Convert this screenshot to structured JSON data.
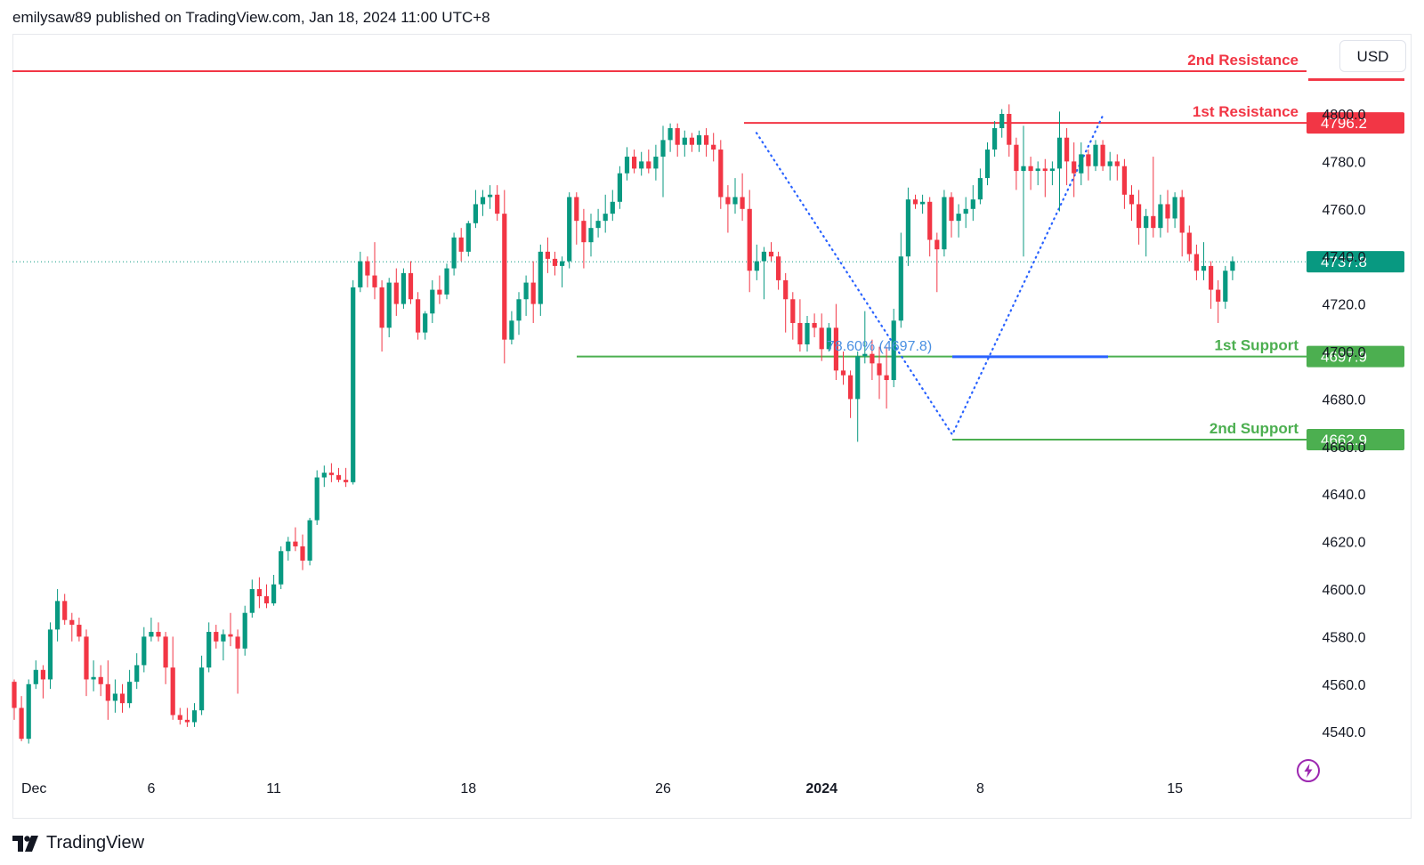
{
  "header": {
    "text": "emilysaw89 published on TradingView.com, Jan 18, 2024 11:00 UTC+8"
  },
  "currency": "USD",
  "footer": {
    "brand": "TradingView",
    "logo_icon": "tradingview-logo-icon"
  },
  "colors": {
    "up": "#089981",
    "down": "#f23645",
    "support": "#4caf50",
    "resistance": "#f23645",
    "fib": "#2962ff",
    "fib_text": "#4a90e2",
    "current": "#089981"
  },
  "chart_data": {
    "type": "candlestick",
    "y_ticks": [
      "4540.0",
      "4560.0",
      "4580.0",
      "4600.0",
      "4620.0",
      "4640.0",
      "4660.0",
      "4680.0",
      "4700.0",
      "4720.0",
      "4740.0",
      "4760.0",
      "4780.0",
      "4800.0"
    ],
    "x_ticks": [
      {
        "label": "Dec",
        "bold": false
      },
      {
        "label": "6",
        "bold": false
      },
      {
        "label": "11",
        "bold": false
      },
      {
        "label": "18",
        "bold": false
      },
      {
        "label": "26",
        "bold": false
      },
      {
        "label": "2024",
        "bold": true
      },
      {
        "label": "8",
        "bold": false
      },
      {
        "label": "15",
        "bold": false
      }
    ],
    "levels": [
      {
        "name": "2nd Resistance",
        "value": 4818,
        "type": "resistance",
        "badge": ""
      },
      {
        "name": "1st Resistance",
        "value": 4796.2,
        "type": "resistance",
        "badge": "4796.2"
      },
      {
        "name": "1st Support",
        "value": 4697.9,
        "type": "support",
        "badge": "4697.9"
      },
      {
        "name": "2nd Support",
        "value": 4662.9,
        "type": "support",
        "badge": "4662.9"
      }
    ],
    "current_price": {
      "value": 4737.8,
      "label": "4737.8"
    },
    "fib": {
      "label": "78.60% (4697.8)",
      "value": 4697.8
    },
    "zigzag": [
      [
        22.5,
        4792
      ],
      [
        29.0,
        4665
      ],
      [
        34.5,
        4800
      ]
    ],
    "candles": [
      [
        4561,
        4562,
        4545,
        4550
      ],
      [
        4550,
        4555,
        4536,
        4537
      ],
      [
        4537,
        4562,
        4535,
        4560
      ],
      [
        4560,
        4570,
        4558,
        4566
      ],
      [
        4566,
        4568,
        4554,
        4562
      ],
      [
        4562,
        4586,
        4558,
        4583
      ],
      [
        4583,
        4600,
        4578,
        4595
      ],
      [
        4595,
        4598,
        4585,
        4587
      ],
      [
        4587,
        4590,
        4578,
        4585
      ],
      [
        4585,
        4588,
        4578,
        4580
      ],
      [
        4580,
        4583,
        4555,
        4562
      ],
      [
        4562,
        4570,
        4557,
        4563
      ],
      [
        4563,
        4568,
        4555,
        4560
      ],
      [
        4560,
        4570,
        4545,
        4553
      ],
      [
        4553,
        4562,
        4548,
        4556
      ],
      [
        4556,
        4560,
        4548,
        4552
      ],
      [
        4552,
        4566,
        4550,
        4561
      ],
      [
        4561,
        4573,
        4558,
        4568
      ],
      [
        4568,
        4584,
        4565,
        4580
      ],
      [
        4580,
        4588,
        4578,
        4582
      ],
      [
        4582,
        4586,
        4578,
        4580
      ],
      [
        4580,
        4582,
        4560,
        4567
      ],
      [
        4567,
        4580,
        4545,
        4547
      ],
      [
        4547,
        4550,
        4543,
        4545
      ],
      [
        4545,
        4550,
        4542,
        4544
      ],
      [
        4544,
        4552,
        4542,
        4549
      ],
      [
        4549,
        4572,
        4547,
        4567
      ],
      [
        4567,
        4586,
        4565,
        4582
      ],
      [
        4582,
        4585,
        4575,
        4578
      ],
      [
        4578,
        4583,
        4570,
        4581
      ],
      [
        4581,
        4590,
        4576,
        4580
      ],
      [
        4580,
        4583,
        4556,
        4575
      ],
      [
        4575,
        4593,
        4572,
        4590
      ],
      [
        4590,
        4604,
        4588,
        4600
      ],
      [
        4600,
        4605,
        4592,
        4597
      ],
      [
        4597,
        4602,
        4592,
        4594
      ],
      [
        4594,
        4606,
        4593,
        4602
      ],
      [
        4602,
        4618,
        4600,
        4616
      ],
      [
        4616,
        4622,
        4612,
        4620
      ],
      [
        4620,
        4626,
        4616,
        4618
      ],
      [
        4618,
        4623,
        4608,
        4612
      ],
      [
        4612,
        4630,
        4610,
        4629
      ],
      [
        4629,
        4650,
        4627,
        4647
      ],
      [
        4647,
        4652,
        4643,
        4649
      ],
      [
        4649,
        4653,
        4645,
        4648
      ],
      [
        4648,
        4651,
        4645,
        4646
      ],
      [
        4646,
        4651,
        4643,
        4645
      ],
      [
        4645,
        4730,
        4644,
        4727
      ],
      [
        4727,
        4742,
        4725,
        4738
      ],
      [
        4738,
        4740,
        4727,
        4732
      ],
      [
        4732,
        4746,
        4722,
        4727
      ],
      [
        4727,
        4730,
        4700,
        4710
      ],
      [
        4710,
        4731,
        4706,
        4729
      ],
      [
        4729,
        4735,
        4715,
        4720
      ],
      [
        4720,
        4735,
        4718,
        4733
      ],
      [
        4733,
        4738,
        4720,
        4722
      ],
      [
        4722,
        4725,
        4705,
        4708
      ],
      [
        4708,
        4717,
        4705,
        4716
      ],
      [
        4716,
        4730,
        4712,
        4726
      ],
      [
        4726,
        4732,
        4720,
        4724
      ],
      [
        4724,
        4737,
        4722,
        4735
      ],
      [
        4735,
        4750,
        4732,
        4748
      ],
      [
        4748,
        4752,
        4738,
        4742
      ],
      [
        4742,
        4755,
        4740,
        4754
      ],
      [
        4754,
        4768,
        4752,
        4762
      ],
      [
        4762,
        4768,
        4757,
        4765
      ],
      [
        4765,
        4770,
        4760,
        4766
      ],
      [
        4766,
        4770,
        4755,
        4758
      ],
      [
        4758,
        4768,
        4695,
        4705
      ],
      [
        4705,
        4717,
        4703,
        4713
      ],
      [
        4713,
        4725,
        4707,
        4722
      ],
      [
        4722,
        4732,
        4715,
        4729
      ],
      [
        4729,
        4738,
        4712,
        4720
      ],
      [
        4720,
        4745,
        4715,
        4742
      ],
      [
        4742,
        4748,
        4733,
        4739
      ],
      [
        4739,
        4742,
        4732,
        4736
      ],
      [
        4736,
        4740,
        4727,
        4738
      ],
      [
        4738,
        4767,
        4735,
        4765
      ],
      [
        4765,
        4767,
        4745,
        4755
      ],
      [
        4755,
        4760,
        4735,
        4746
      ],
      [
        4746,
        4758,
        4740,
        4752
      ],
      [
        4752,
        4760,
        4748,
        4755
      ],
      [
        4755,
        4766,
        4750,
        4758
      ],
      [
        4758,
        4768,
        4755,
        4763
      ],
      [
        4763,
        4778,
        4760,
        4775
      ],
      [
        4775,
        4786,
        4772,
        4782
      ],
      [
        4782,
        4785,
        4775,
        4777
      ],
      [
        4777,
        4784,
        4774,
        4780
      ],
      [
        4780,
        4785,
        4775,
        4777
      ],
      [
        4777,
        4787,
        4772,
        4782
      ],
      [
        4782,
        4795,
        4765,
        4789
      ],
      [
        4789,
        4796,
        4784,
        4794
      ],
      [
        4794,
        4796,
        4782,
        4787
      ],
      [
        4787,
        4793,
        4782,
        4790
      ],
      [
        4790,
        4792,
        4784,
        4787
      ],
      [
        4787,
        4793,
        4784,
        4791
      ],
      [
        4791,
        4794,
        4782,
        4787
      ],
      [
        4787,
        4792,
        4780,
        4785
      ],
      [
        4785,
        4789,
        4760,
        4765
      ],
      [
        4765,
        4770,
        4750,
        4762
      ],
      [
        4762,
        4773,
        4758,
        4765
      ],
      [
        4765,
        4775,
        4755,
        4760
      ],
      [
        4760,
        4768,
        4725,
        4734
      ],
      [
        4734,
        4745,
        4730,
        4738
      ],
      [
        4738,
        4744,
        4722,
        4742
      ],
      [
        4742,
        4746,
        4738,
        4740
      ],
      [
        4740,
        4742,
        4726,
        4730
      ],
      [
        4730,
        4733,
        4708,
        4722
      ],
      [
        4722,
        4725,
        4705,
        4712
      ],
      [
        4712,
        4722,
        4700,
        4703
      ],
      [
        4703,
        4715,
        4700,
        4712
      ],
      [
        4712,
        4716,
        4706,
        4710
      ],
      [
        4710,
        4716,
        4696,
        4701
      ],
      [
        4701,
        4712,
        4700,
        4710
      ],
      [
        4710,
        4720,
        4688,
        4692
      ],
      [
        4692,
        4700,
        4686,
        4690
      ],
      [
        4690,
        4692,
        4672,
        4680
      ],
      [
        4680,
        4700,
        4662,
        4698
      ],
      [
        4698,
        4717,
        4695,
        4699
      ],
      [
        4699,
        4705,
        4688,
        4695
      ],
      [
        4695,
        4702,
        4680,
        4690
      ],
      [
        4690,
        4702,
        4676,
        4688
      ],
      [
        4688,
        4718,
        4685,
        4713
      ],
      [
        4713,
        4750,
        4710,
        4740
      ],
      [
        4740,
        4769,
        4736,
        4764
      ],
      [
        4764,
        4766,
        4760,
        4762
      ],
      [
        4762,
        4766,
        4758,
        4763
      ],
      [
        4763,
        4765,
        4740,
        4747
      ],
      [
        4747,
        4750,
        4725,
        4743
      ],
      [
        4743,
        4768,
        4740,
        4765
      ],
      [
        4765,
        4767,
        4748,
        4755
      ],
      [
        4755,
        4762,
        4748,
        4758
      ],
      [
        4758,
        4765,
        4752,
        4760
      ],
      [
        4760,
        4770,
        4755,
        4764
      ],
      [
        4764,
        4777,
        4762,
        4773
      ],
      [
        4773,
        4788,
        4770,
        4785
      ],
      [
        4785,
        4797,
        4782,
        4794
      ],
      [
        4794,
        4802,
        4790,
        4800
      ],
      [
        4800,
        4804,
        4782,
        4787
      ],
      [
        4787,
        4790,
        4768,
        4776
      ],
      [
        4776,
        4795,
        4740,
        4778
      ],
      [
        4778,
        4782,
        4768,
        4776
      ],
      [
        4776,
        4780,
        4770,
        4777
      ],
      [
        4777,
        4781,
        4765,
        4776
      ],
      [
        4776,
        4780,
        4770,
        4777
      ],
      [
        4777,
        4801,
        4759,
        4790
      ],
      [
        4790,
        4794,
        4770,
        4780
      ],
      [
        4780,
        4788,
        4765,
        4775
      ],
      [
        4775,
        4788,
        4770,
        4783
      ],
      [
        4783,
        4785,
        4772,
        4778
      ],
      [
        4778,
        4789,
        4776,
        4787
      ],
      [
        4787,
        4789,
        4776,
        4778
      ],
      [
        4778,
        4784,
        4772,
        4780
      ],
      [
        4780,
        4783,
        4772,
        4778
      ],
      [
        4778,
        4781,
        4760,
        4766
      ],
      [
        4766,
        4770,
        4755,
        4762
      ],
      [
        4762,
        4768,
        4745,
        4752
      ],
      [
        4752,
        4760,
        4740,
        4757
      ],
      [
        4757,
        4782,
        4748,
        4752
      ],
      [
        4752,
        4766,
        4748,
        4762
      ],
      [
        4762,
        4768,
        4750,
        4756
      ],
      [
        4756,
        4767,
        4752,
        4765
      ],
      [
        4765,
        4768,
        4740,
        4750
      ],
      [
        4750,
        4753,
        4738,
        4741
      ],
      [
        4741,
        4745,
        4730,
        4734
      ],
      [
        4734,
        4746,
        4730,
        4736
      ],
      [
        4736,
        4738,
        4718,
        4726
      ],
      [
        4726,
        4730,
        4712,
        4721
      ],
      [
        4721,
        4736,
        4718,
        4734
      ],
      [
        4734,
        4740,
        4730,
        4738
      ]
    ]
  }
}
